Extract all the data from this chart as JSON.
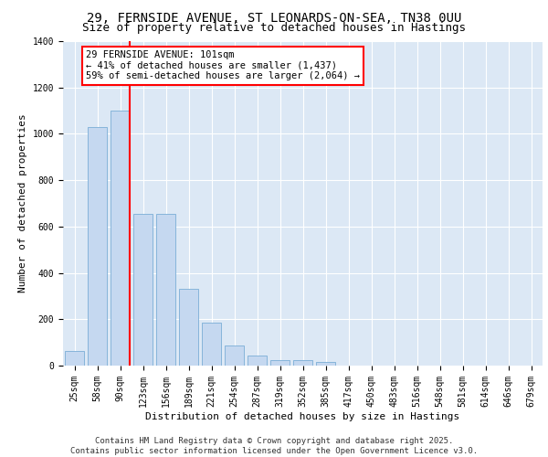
{
  "title_line1": "29, FERNSIDE AVENUE, ST LEONARDS-ON-SEA, TN38 0UU",
  "title_line2": "Size of property relative to detached houses in Hastings",
  "xlabel": "Distribution of detached houses by size in Hastings",
  "ylabel": "Number of detached properties",
  "categories": [
    "25sqm",
    "58sqm",
    "90sqm",
    "123sqm",
    "156sqm",
    "189sqm",
    "221sqm",
    "254sqm",
    "287sqm",
    "319sqm",
    "352sqm",
    "385sqm",
    "417sqm",
    "450sqm",
    "483sqm",
    "516sqm",
    "548sqm",
    "581sqm",
    "614sqm",
    "646sqm",
    "679sqm"
  ],
  "values": [
    62,
    1030,
    1100,
    655,
    655,
    330,
    185,
    85,
    45,
    25,
    25,
    15,
    0,
    0,
    0,
    0,
    0,
    0,
    0,
    0,
    0
  ],
  "bar_color": "#c5d8f0",
  "bar_edge_color": "#7aadd6",
  "background_color": "#dce8f5",
  "grid_color": "#ffffff",
  "vline_x": 2.43,
  "vline_color": "red",
  "annotation_text": "29 FERNSIDE AVENUE: 101sqm\n← 41% of detached houses are smaller (1,437)\n59% of semi-detached houses are larger (2,064) →",
  "annotation_box_color": "white",
  "annotation_edge_color": "red",
  "ylim": [
    0,
    1400
  ],
  "yticks": [
    0,
    200,
    400,
    600,
    800,
    1000,
    1200,
    1400
  ],
  "footnote_line1": "Contains HM Land Registry data © Crown copyright and database right 2025.",
  "footnote_line2": "Contains public sector information licensed under the Open Government Licence v3.0.",
  "title_fontsize": 10,
  "subtitle_fontsize": 9,
  "axis_label_fontsize": 8,
  "tick_fontsize": 7,
  "annotation_fontsize": 7.5,
  "footnote_fontsize": 6.5
}
